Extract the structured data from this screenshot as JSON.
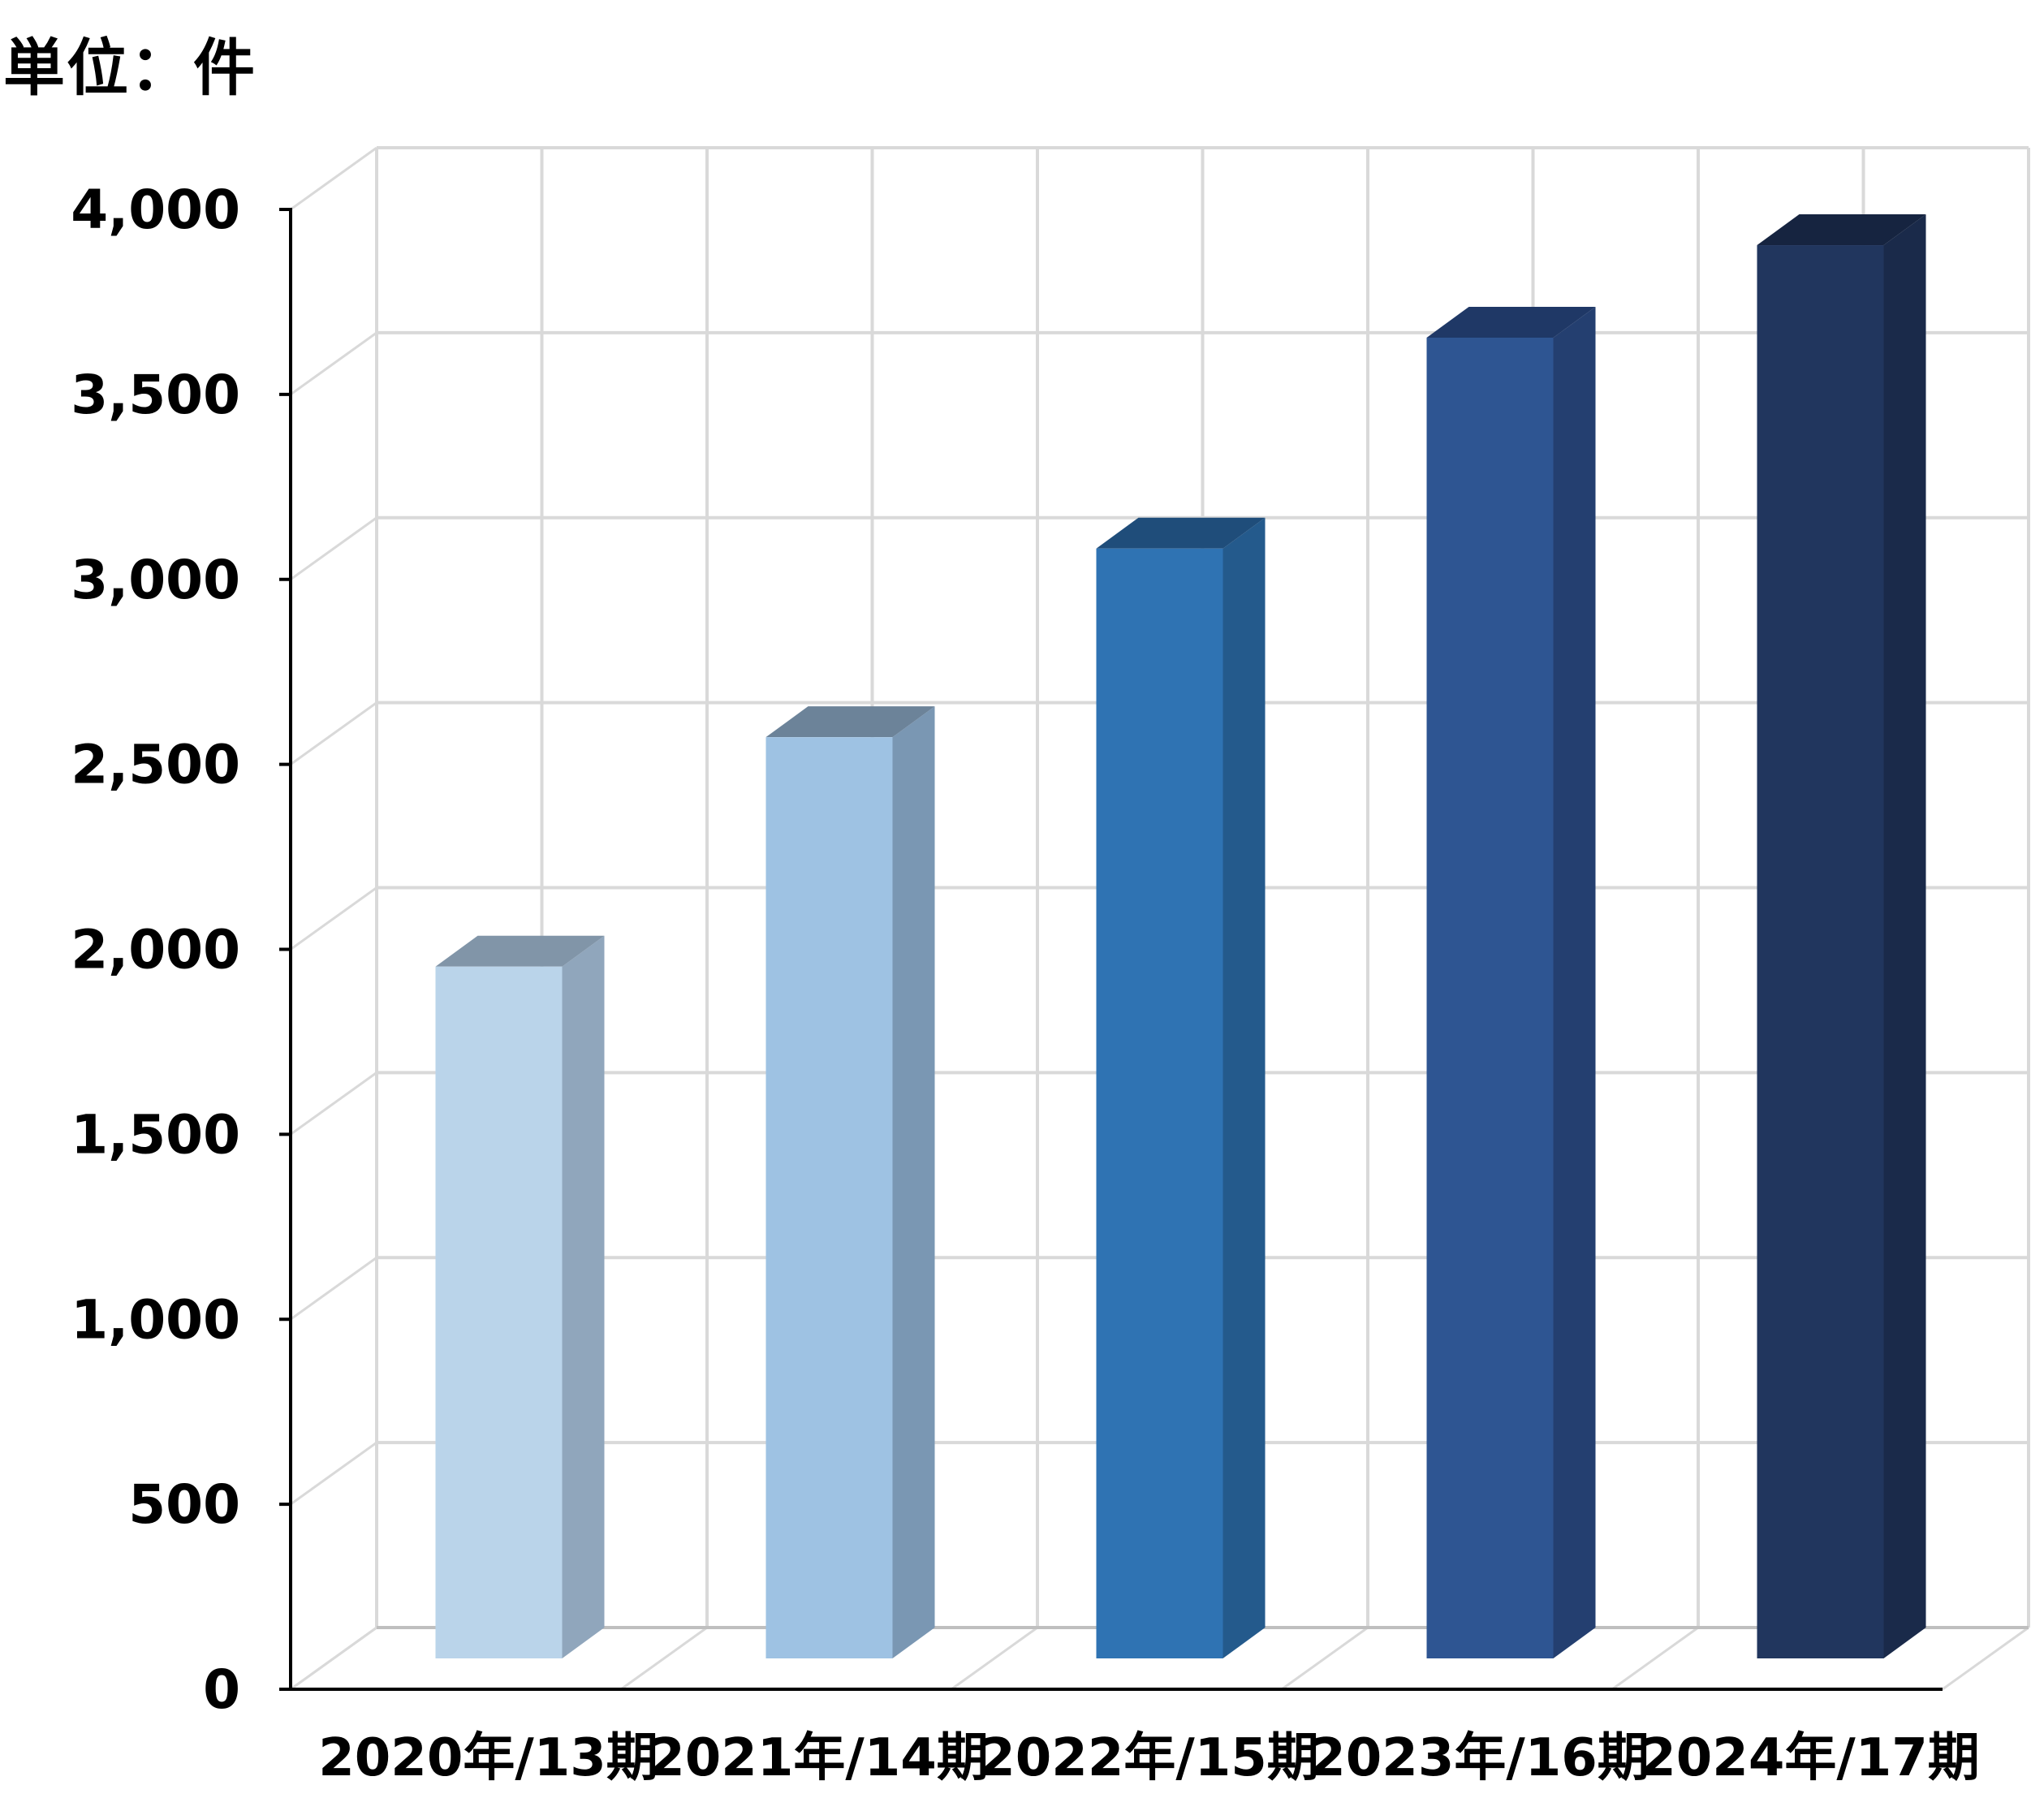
{
  "unit_label": "単位：件",
  "chart_data": {
    "type": "bar",
    "categories": [
      "2020年/13期",
      "2021年/14期",
      "2022年/15期",
      "2023年/16期",
      "2024年/17期"
    ],
    "values": [
      1870,
      2490,
      3000,
      3570,
      3820
    ],
    "colors": {
      "front": [
        "#bad4ea",
        "#9ec2e3",
        "#2f73b3",
        "#2e5592",
        "#21365e"
      ],
      "side": [
        "#90a6bc",
        "#7a97b3",
        "#245a8c",
        "#243f70",
        "#1a2a4a"
      ],
      "top": [
        "#8195a8",
        "#6c8399",
        "#1f4d7a",
        "#1f3866",
        "#162440"
      ]
    },
    "ylim": [
      0,
      4000
    ],
    "y_ticks": [
      0,
      500,
      1000,
      1500,
      2000,
      2500,
      3000,
      3500,
      4000
    ],
    "y_tick_labels": [
      "0",
      "500",
      "1,000",
      "1,500",
      "2,000",
      "2,500",
      "3,000",
      "3,500",
      "4,000"
    ],
    "grid": true,
    "style": "3d-column"
  }
}
